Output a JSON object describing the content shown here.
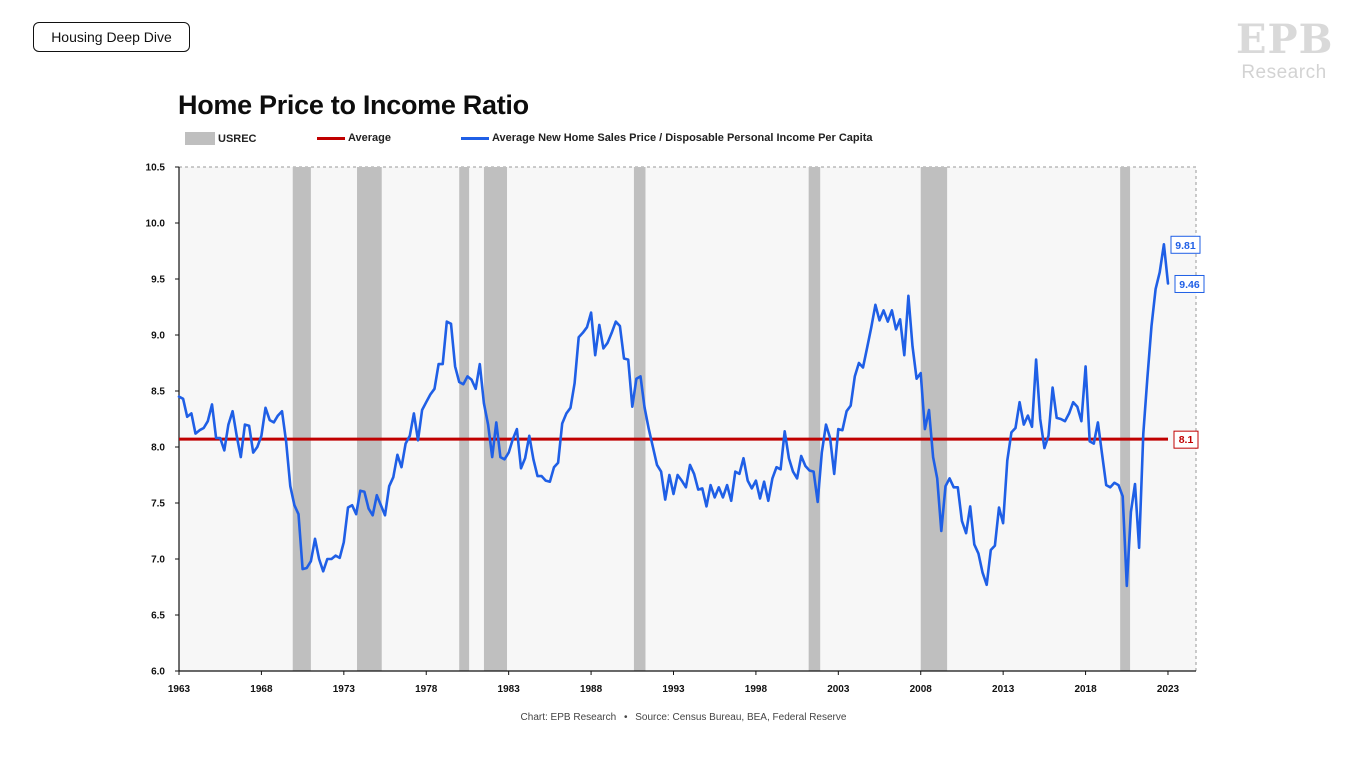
{
  "badge": {
    "label": "Housing Deep Dive"
  },
  "logo": {
    "mark": "EPB",
    "sub": "Research"
  },
  "chart_data": {
    "type": "line",
    "title": "Home Price to Income Ratio",
    "legend": [
      {
        "name": "USREC",
        "kind": "rect",
        "color": "#bfbfbf"
      },
      {
        "name": "Average",
        "kind": "line",
        "color": "#c00000"
      },
      {
        "name": "Average New Home Sales Price / Disposable Personal Income Per Capita",
        "kind": "line",
        "color": "#1f5fe6"
      }
    ],
    "legend_placement": "top",
    "xlim": [
      1963,
      2024.7
    ],
    "ylim": [
      6.0,
      10.5
    ],
    "x_ticks": [
      1963,
      1968,
      1973,
      1978,
      1983,
      1988,
      1993,
      1998,
      2003,
      2008,
      2013,
      2018,
      2023
    ],
    "y_ticks": [
      6.0,
      6.5,
      7.0,
      7.5,
      8.0,
      8.5,
      9.0,
      9.5,
      10.0,
      10.5
    ],
    "y_tick_labels": [
      "6.0",
      "6.5",
      "7.0",
      "7.5",
      "8.0",
      "8.5",
      "9.0",
      "9.5",
      "10.0",
      "10.5"
    ],
    "grid": false,
    "recessions": [
      [
        1969.9,
        1971.0
      ],
      [
        1973.8,
        1975.3
      ],
      [
        1980.0,
        1980.6
      ],
      [
        1981.5,
        1982.9
      ],
      [
        1990.6,
        1991.3
      ],
      [
        2001.2,
        2001.9
      ],
      [
        2008.0,
        2009.6
      ],
      [
        2020.1,
        2020.7
      ]
    ],
    "average": {
      "value": 8.07,
      "label": "8.1",
      "color": "#c00000"
    },
    "series": [
      {
        "color": "#1f5fe6",
        "end_labels": [
          {
            "x": 2022.25,
            "y": 9.81,
            "label": "9.81"
          },
          {
            "x": 2022.75,
            "y": 9.46,
            "label": "9.46"
          }
        ],
        "points": [
          [
            1963.0,
            8.45
          ],
          [
            1963.25,
            8.43
          ],
          [
            1963.5,
            8.27
          ],
          [
            1963.75,
            8.3
          ],
          [
            1964.0,
            8.12
          ],
          [
            1964.25,
            8.15
          ],
          [
            1964.5,
            8.17
          ],
          [
            1964.75,
            8.23
          ],
          [
            1965.0,
            8.38
          ],
          [
            1965.25,
            8.08
          ],
          [
            1965.5,
            8.08
          ],
          [
            1965.75,
            7.97
          ],
          [
            1966.0,
            8.2
          ],
          [
            1966.25,
            8.32
          ],
          [
            1966.5,
            8.1
          ],
          [
            1966.75,
            7.91
          ],
          [
            1967.0,
            8.2
          ],
          [
            1967.25,
            8.19
          ],
          [
            1967.5,
            7.95
          ],
          [
            1967.75,
            8.0
          ],
          [
            1968.0,
            8.1
          ],
          [
            1968.25,
            8.35
          ],
          [
            1968.5,
            8.24
          ],
          [
            1968.75,
            8.22
          ],
          [
            1969.0,
            8.28
          ],
          [
            1969.25,
            8.32
          ],
          [
            1969.5,
            8.05
          ],
          [
            1969.75,
            7.65
          ],
          [
            1970.0,
            7.48
          ],
          [
            1970.25,
            7.4
          ],
          [
            1970.5,
            6.91
          ],
          [
            1970.75,
            6.92
          ],
          [
            1971.0,
            6.98
          ],
          [
            1971.25,
            7.18
          ],
          [
            1971.5,
            7.0
          ],
          [
            1971.75,
            6.89
          ],
          [
            1972.0,
            7.0
          ],
          [
            1972.25,
            7.0
          ],
          [
            1972.5,
            7.03
          ],
          [
            1972.75,
            7.01
          ],
          [
            1973.0,
            7.15
          ],
          [
            1973.25,
            7.46
          ],
          [
            1973.5,
            7.48
          ],
          [
            1973.75,
            7.4
          ],
          [
            1974.0,
            7.61
          ],
          [
            1974.25,
            7.6
          ],
          [
            1974.5,
            7.45
          ],
          [
            1974.75,
            7.39
          ],
          [
            1975.0,
            7.57
          ],
          [
            1975.25,
            7.48
          ],
          [
            1975.5,
            7.39
          ],
          [
            1975.75,
            7.65
          ],
          [
            1976.0,
            7.73
          ],
          [
            1976.25,
            7.93
          ],
          [
            1976.5,
            7.82
          ],
          [
            1976.75,
            8.03
          ],
          [
            1977.0,
            8.1
          ],
          [
            1977.25,
            8.3
          ],
          [
            1977.5,
            8.06
          ],
          [
            1977.75,
            8.33
          ],
          [
            1978.0,
            8.4
          ],
          [
            1978.25,
            8.47
          ],
          [
            1978.5,
            8.52
          ],
          [
            1978.75,
            8.74
          ],
          [
            1979.0,
            8.74
          ],
          [
            1979.25,
            9.12
          ],
          [
            1979.5,
            9.1
          ],
          [
            1979.75,
            8.72
          ],
          [
            1980.0,
            8.58
          ],
          [
            1980.25,
            8.56
          ],
          [
            1980.5,
            8.63
          ],
          [
            1980.75,
            8.6
          ],
          [
            1981.0,
            8.52
          ],
          [
            1981.25,
            8.74
          ],
          [
            1981.5,
            8.39
          ],
          [
            1981.75,
            8.2
          ],
          [
            1982.0,
            7.91
          ],
          [
            1982.25,
            8.22
          ],
          [
            1982.5,
            7.91
          ],
          [
            1982.75,
            7.89
          ],
          [
            1983.0,
            7.95
          ],
          [
            1983.25,
            8.07
          ],
          [
            1983.5,
            8.16
          ],
          [
            1983.75,
            7.81
          ],
          [
            1984.0,
            7.9
          ],
          [
            1984.25,
            8.1
          ],
          [
            1984.5,
            7.89
          ],
          [
            1984.75,
            7.74
          ],
          [
            1985.0,
            7.74
          ],
          [
            1985.25,
            7.7
          ],
          [
            1985.5,
            7.69
          ],
          [
            1985.75,
            7.82
          ],
          [
            1986.0,
            7.86
          ],
          [
            1986.25,
            8.21
          ],
          [
            1986.5,
            8.3
          ],
          [
            1986.75,
            8.35
          ],
          [
            1987.0,
            8.57
          ],
          [
            1987.25,
            8.98
          ],
          [
            1987.5,
            9.02
          ],
          [
            1987.75,
            9.07
          ],
          [
            1988.0,
            9.2
          ],
          [
            1988.25,
            8.82
          ],
          [
            1988.5,
            9.09
          ],
          [
            1988.75,
            8.88
          ],
          [
            1989.0,
            8.93
          ],
          [
            1989.25,
            9.02
          ],
          [
            1989.5,
            9.12
          ],
          [
            1989.75,
            9.08
          ],
          [
            1990.0,
            8.79
          ],
          [
            1990.25,
            8.78
          ],
          [
            1990.5,
            8.36
          ],
          [
            1990.75,
            8.61
          ],
          [
            1991.0,
            8.63
          ],
          [
            1991.25,
            8.35
          ],
          [
            1991.5,
            8.16
          ],
          [
            1991.75,
            8.0
          ],
          [
            1992.0,
            7.84
          ],
          [
            1992.25,
            7.78
          ],
          [
            1992.5,
            7.53
          ],
          [
            1992.75,
            7.75
          ],
          [
            1993.0,
            7.58
          ],
          [
            1993.25,
            7.75
          ],
          [
            1993.5,
            7.7
          ],
          [
            1993.75,
            7.64
          ],
          [
            1994.0,
            7.84
          ],
          [
            1994.25,
            7.76
          ],
          [
            1994.5,
            7.62
          ],
          [
            1994.75,
            7.63
          ],
          [
            1995.0,
            7.47
          ],
          [
            1995.25,
            7.66
          ],
          [
            1995.5,
            7.55
          ],
          [
            1995.75,
            7.64
          ],
          [
            1996.0,
            7.55
          ],
          [
            1996.25,
            7.66
          ],
          [
            1996.5,
            7.52
          ],
          [
            1996.75,
            7.78
          ],
          [
            1997.0,
            7.76
          ],
          [
            1997.25,
            7.9
          ],
          [
            1997.5,
            7.7
          ],
          [
            1997.75,
            7.63
          ],
          [
            1998.0,
            7.7
          ],
          [
            1998.25,
            7.54
          ],
          [
            1998.5,
            7.69
          ],
          [
            1998.75,
            7.52
          ],
          [
            1999.0,
            7.72
          ],
          [
            1999.25,
            7.82
          ],
          [
            1999.5,
            7.8
          ],
          [
            1999.75,
            8.14
          ],
          [
            2000.0,
            7.9
          ],
          [
            2000.25,
            7.78
          ],
          [
            2000.5,
            7.72
          ],
          [
            2000.75,
            7.92
          ],
          [
            2001.0,
            7.83
          ],
          [
            2001.25,
            7.79
          ],
          [
            2001.5,
            7.78
          ],
          [
            2001.75,
            7.51
          ],
          [
            2002.0,
            7.95
          ],
          [
            2002.25,
            8.2
          ],
          [
            2002.5,
            8.08
          ],
          [
            2002.75,
            7.76
          ],
          [
            2003.0,
            8.16
          ],
          [
            2003.25,
            8.15
          ],
          [
            2003.5,
            8.32
          ],
          [
            2003.75,
            8.37
          ],
          [
            2004.0,
            8.63
          ],
          [
            2004.25,
            8.75
          ],
          [
            2004.5,
            8.71
          ],
          [
            2004.75,
            8.89
          ],
          [
            2005.0,
            9.07
          ],
          [
            2005.25,
            9.27
          ],
          [
            2005.5,
            9.13
          ],
          [
            2005.75,
            9.22
          ],
          [
            2006.0,
            9.12
          ],
          [
            2006.25,
            9.22
          ],
          [
            2006.5,
            9.05
          ],
          [
            2006.75,
            9.14
          ],
          [
            2007.0,
            8.82
          ],
          [
            2007.25,
            9.35
          ],
          [
            2007.5,
            8.9
          ],
          [
            2007.75,
            8.61
          ],
          [
            2008.0,
            8.66
          ],
          [
            2008.25,
            8.16
          ],
          [
            2008.5,
            8.33
          ],
          [
            2008.75,
            7.91
          ],
          [
            2009.0,
            7.72
          ],
          [
            2009.25,
            7.25
          ],
          [
            2009.5,
            7.65
          ],
          [
            2009.75,
            7.72
          ],
          [
            2010.0,
            7.64
          ],
          [
            2010.25,
            7.64
          ],
          [
            2010.5,
            7.34
          ],
          [
            2010.75,
            7.23
          ],
          [
            2011.0,
            7.47
          ],
          [
            2011.25,
            7.13
          ],
          [
            2011.5,
            7.05
          ],
          [
            2011.75,
            6.88
          ],
          [
            2012.0,
            6.77
          ],
          [
            2012.25,
            7.08
          ],
          [
            2012.5,
            7.12
          ],
          [
            2012.75,
            7.46
          ],
          [
            2013.0,
            7.32
          ],
          [
            2013.25,
            7.88
          ],
          [
            2013.5,
            8.13
          ],
          [
            2013.75,
            8.17
          ],
          [
            2014.0,
            8.4
          ],
          [
            2014.25,
            8.2
          ],
          [
            2014.5,
            8.28
          ],
          [
            2014.75,
            8.18
          ],
          [
            2015.0,
            8.78
          ],
          [
            2015.25,
            8.25
          ],
          [
            2015.5,
            7.99
          ],
          [
            2015.75,
            8.1
          ],
          [
            2016.0,
            8.53
          ],
          [
            2016.25,
            8.26
          ],
          [
            2016.5,
            8.25
          ],
          [
            2016.75,
            8.23
          ],
          [
            2017.0,
            8.3
          ],
          [
            2017.25,
            8.4
          ],
          [
            2017.5,
            8.36
          ],
          [
            2017.75,
            8.23
          ],
          [
            2018.0,
            8.72
          ],
          [
            2018.25,
            8.05
          ],
          [
            2018.5,
            8.03
          ],
          [
            2018.75,
            8.22
          ],
          [
            2019.0,
            7.94
          ],
          [
            2019.25,
            7.66
          ],
          [
            2019.5,
            7.64
          ],
          [
            2019.75,
            7.68
          ],
          [
            2020.0,
            7.66
          ],
          [
            2020.25,
            7.56
          ],
          [
            2020.5,
            6.76
          ],
          [
            2020.75,
            7.42
          ],
          [
            2021.0,
            7.67
          ],
          [
            2021.25,
            7.1
          ],
          [
            2021.5,
            8.12
          ],
          [
            2021.75,
            8.62
          ],
          [
            2022.0,
            9.08
          ],
          [
            2022.25,
            9.41
          ],
          [
            2022.5,
            9.56
          ],
          [
            2022.75,
            9.81
          ],
          [
            2023.0,
            9.46
          ]
        ]
      }
    ]
  },
  "source": {
    "chart_by": "Chart: EPB Research",
    "separator": "•",
    "sources": "Source: Census Bureau, BEA, Federal Reserve"
  }
}
